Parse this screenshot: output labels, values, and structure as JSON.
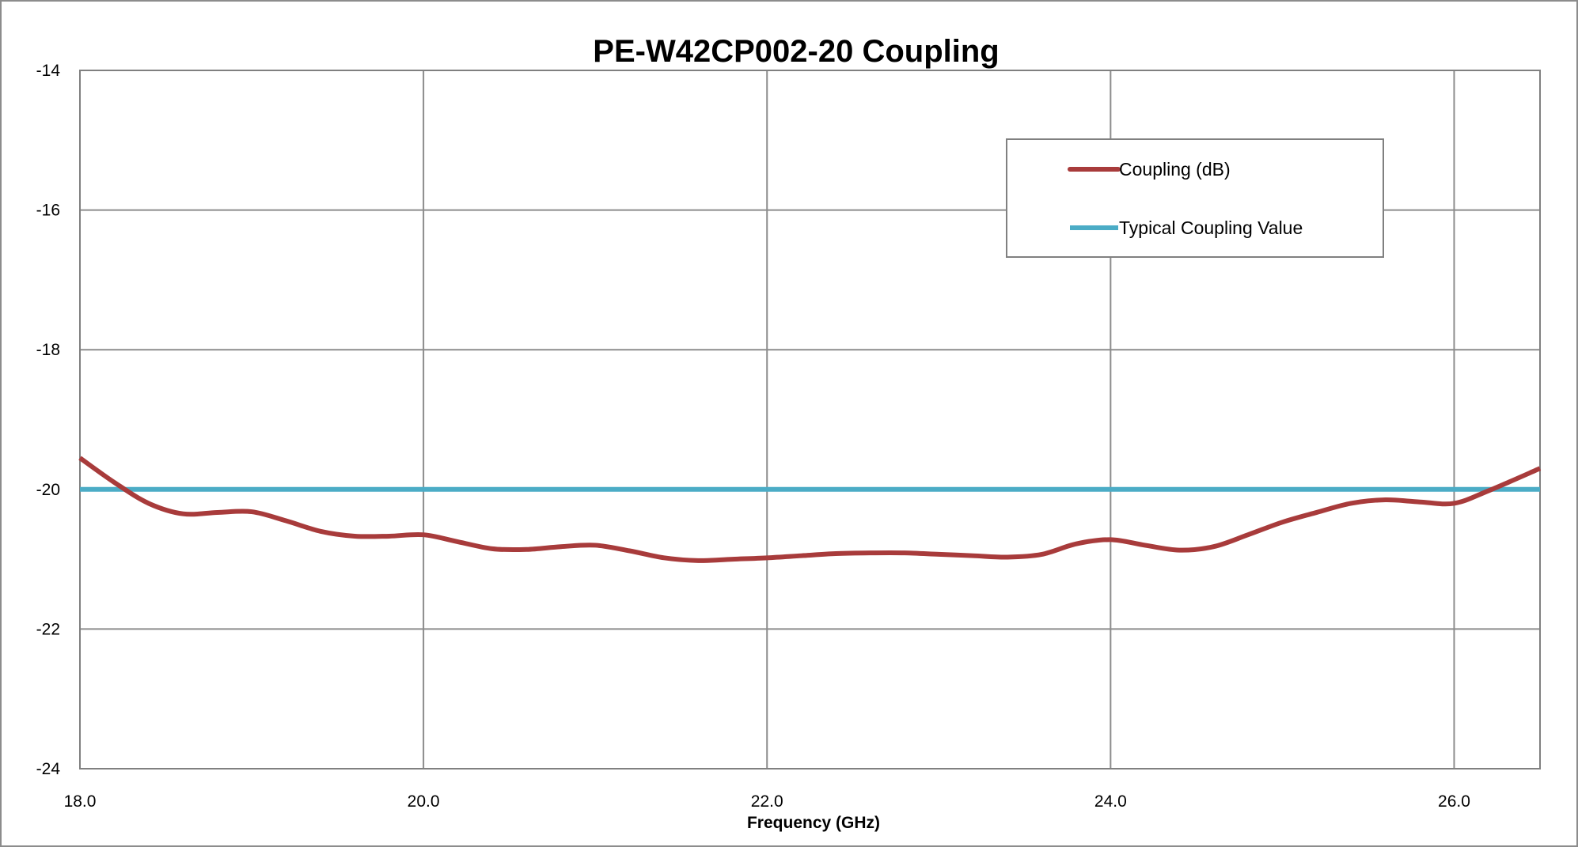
{
  "chart_data": {
    "type": "line",
    "title": "PE-W42CP002-20 Coupling",
    "xlabel": "Frequency (GHz)",
    "ylabel": "",
    "xlim": [
      18.0,
      26.5
    ],
    "ylim": [
      -24,
      -14
    ],
    "xticks": [
      18.0,
      20.0,
      22.0,
      24.0,
      26.0
    ],
    "xtick_labels": [
      "18.0",
      "20.0",
      "22.0",
      "24.0",
      "26.0"
    ],
    "yticks": [
      -14,
      -16,
      -18,
      -20,
      -22,
      -24
    ],
    "ytick_labels": [
      "-14",
      "-16",
      "-18",
      "-20",
      "-22",
      "-24"
    ],
    "grid": true,
    "legend_position": "top-right",
    "series": [
      {
        "name": "Coupling (dB)",
        "color": "#A83B3B",
        "x": [
          18.0,
          18.2,
          18.4,
          18.6,
          18.8,
          19.0,
          19.2,
          19.4,
          19.6,
          19.8,
          20.0,
          20.2,
          20.4,
          20.6,
          20.8,
          21.0,
          21.2,
          21.4,
          21.6,
          21.8,
          22.0,
          22.2,
          22.4,
          22.6,
          22.8,
          23.0,
          23.2,
          23.4,
          23.6,
          23.8,
          24.0,
          24.2,
          24.4,
          24.6,
          24.8,
          25.0,
          25.2,
          25.4,
          25.6,
          25.8,
          26.0,
          26.2,
          26.5
        ],
        "y": [
          -19.55,
          -19.9,
          -20.2,
          -20.35,
          -20.33,
          -20.32,
          -20.45,
          -20.6,
          -20.67,
          -20.67,
          -20.65,
          -20.75,
          -20.85,
          -20.86,
          -20.82,
          -20.8,
          -20.88,
          -20.98,
          -21.02,
          -21.0,
          -20.98,
          -20.95,
          -20.92,
          -20.91,
          -20.91,
          -20.93,
          -20.95,
          -20.97,
          -20.93,
          -20.78,
          -20.72,
          -20.8,
          -20.87,
          -20.82,
          -20.65,
          -20.47,
          -20.33,
          -20.2,
          -20.15,
          -20.18,
          -20.2,
          -20.02,
          -19.7
        ]
      },
      {
        "name": "Typical Coupling Value",
        "color": "#4BACC6",
        "x": [
          18.0,
          26.5
        ],
        "y": [
          -20,
          -20
        ]
      }
    ]
  }
}
